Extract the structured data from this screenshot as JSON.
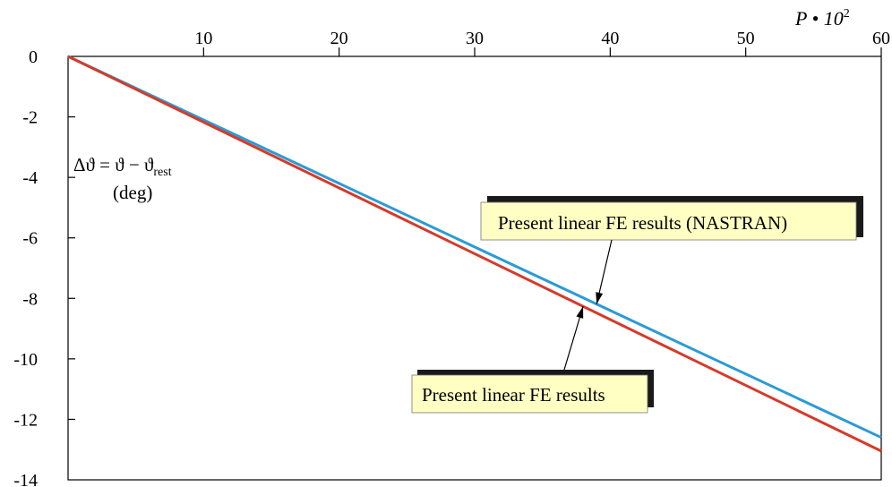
{
  "chart_data": {
    "type": "line",
    "x_axis": {
      "label_base": "P • 10",
      "label_exp": "2",
      "ticks": [
        10,
        20,
        30,
        40,
        50,
        60
      ],
      "tick_labels": [
        "10",
        "20",
        "30",
        "40",
        "50",
        "60"
      ],
      "range": [
        0,
        60
      ],
      "position": "top"
    },
    "y_axis": {
      "label_line1_a": "Δϑ = ϑ − ϑ",
      "label_line1_sub": "rest",
      "label_line2": "(deg)",
      "ticks": [
        0,
        -2,
        -4,
        -6,
        -8,
        -10,
        -12,
        -14
      ],
      "tick_labels": [
        "0",
        "-2",
        "-4",
        "-6",
        "-8",
        "-10",
        "-12",
        "-14"
      ],
      "range": [
        -14,
        0
      ]
    },
    "grid": false,
    "series": [
      {
        "name": "Present linear FE results (NASTRAN)",
        "color": "#2b9bd6",
        "x": [
          0,
          60
        ],
        "y": [
          0,
          -12.6
        ]
      },
      {
        "name": "Present linear FE results",
        "color": "#d63a2a",
        "x": [
          0,
          60
        ],
        "y": [
          0,
          -13.05
        ]
      }
    ],
    "annotations": [
      {
        "text": "Present linear FE results (NASTRAN)",
        "series": 0,
        "points_to_x": 39
      },
      {
        "text": "Present linear FE results",
        "series": 1,
        "points_to_x": 38
      }
    ],
    "colors": {
      "annotation_fill": "#ffffc4",
      "annotation_shadow": "#1a1a1a"
    }
  }
}
